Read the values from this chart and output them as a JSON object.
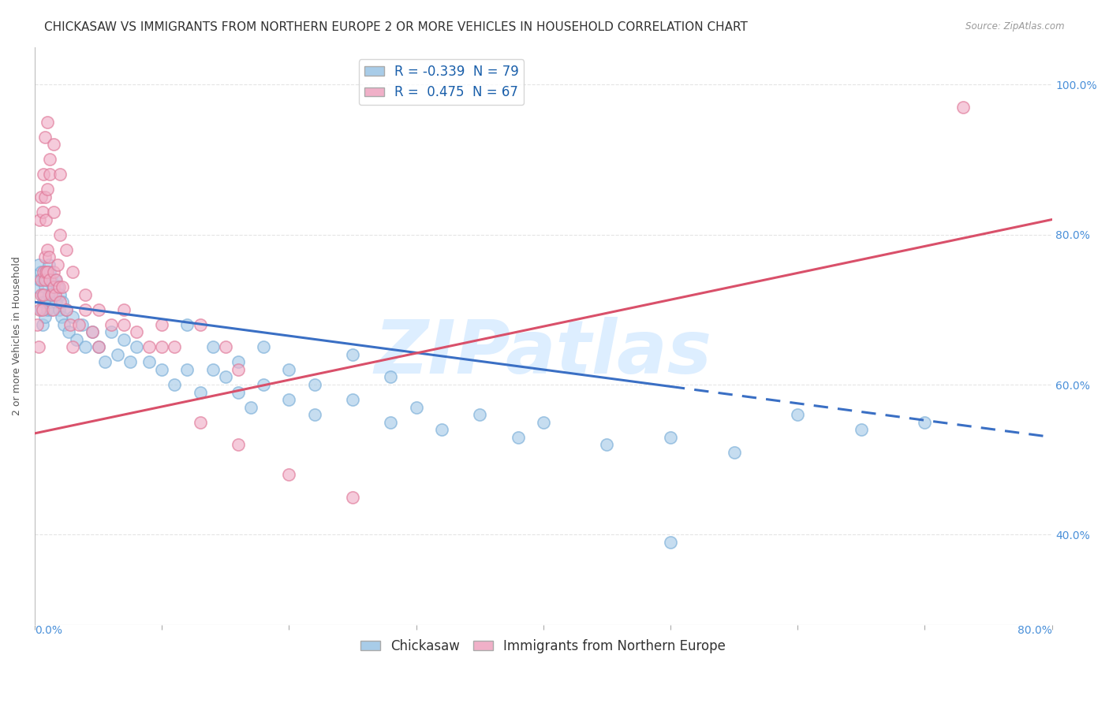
{
  "title": "CHICKASAW VS IMMIGRANTS FROM NORTHERN EUROPE 2 OR MORE VEHICLES IN HOUSEHOLD CORRELATION CHART",
  "source": "Source: ZipAtlas.com",
  "ylabel": "2 or more Vehicles in Household",
  "ylabel_right_ticks": [
    "100.0%",
    "80.0%",
    "60.0%",
    "40.0%"
  ],
  "ylabel_right_vals": [
    1.0,
    0.8,
    0.6,
    0.4
  ],
  "legend_row1": "R = -0.339  N = 79",
  "legend_row2": "R =  0.475  N = 67",
  "legend_color1": "#a8cce8",
  "legend_color2": "#f0b0c8",
  "chickasaw_color": "#a8cce8",
  "chickasaw_edge": "#7aaed8",
  "ne_color": "#f0b0c8",
  "ne_edge": "#e07898",
  "chickasaw_x": [
    0.002,
    0.003,
    0.004,
    0.005,
    0.005,
    0.006,
    0.006,
    0.007,
    0.007,
    0.008,
    0.008,
    0.009,
    0.009,
    0.01,
    0.01,
    0.011,
    0.011,
    0.012,
    0.012,
    0.013,
    0.013,
    0.014,
    0.015,
    0.016,
    0.017,
    0.018,
    0.019,
    0.02,
    0.021,
    0.022,
    0.023,
    0.025,
    0.027,
    0.03,
    0.033,
    0.037,
    0.04,
    0.045,
    0.05,
    0.055,
    0.06,
    0.065,
    0.07,
    0.075,
    0.08,
    0.09,
    0.1,
    0.11,
    0.12,
    0.13,
    0.14,
    0.15,
    0.16,
    0.17,
    0.18,
    0.2,
    0.22,
    0.25,
    0.28,
    0.3,
    0.32,
    0.35,
    0.38,
    0.4,
    0.45,
    0.5,
    0.55,
    0.6,
    0.65,
    0.7,
    0.12,
    0.14,
    0.16,
    0.18,
    0.2,
    0.22,
    0.25,
    0.28,
    0.5
  ],
  "chickasaw_y": [
    0.73,
    0.76,
    0.74,
    0.7,
    0.75,
    0.72,
    0.68,
    0.74,
    0.71,
    0.73,
    0.69,
    0.75,
    0.71,
    0.74,
    0.7,
    0.76,
    0.72,
    0.75,
    0.71,
    0.74,
    0.7,
    0.73,
    0.72,
    0.74,
    0.71,
    0.73,
    0.7,
    0.72,
    0.69,
    0.71,
    0.68,
    0.7,
    0.67,
    0.69,
    0.66,
    0.68,
    0.65,
    0.67,
    0.65,
    0.63,
    0.67,
    0.64,
    0.66,
    0.63,
    0.65,
    0.63,
    0.62,
    0.6,
    0.62,
    0.59,
    0.62,
    0.61,
    0.59,
    0.57,
    0.6,
    0.58,
    0.56,
    0.58,
    0.55,
    0.57,
    0.54,
    0.56,
    0.53,
    0.55,
    0.52,
    0.53,
    0.51,
    0.56,
    0.54,
    0.55,
    0.68,
    0.65,
    0.63,
    0.65,
    0.62,
    0.6,
    0.64,
    0.61,
    0.39
  ],
  "ne_x": [
    0.002,
    0.003,
    0.004,
    0.005,
    0.005,
    0.006,
    0.007,
    0.007,
    0.008,
    0.008,
    0.009,
    0.01,
    0.01,
    0.011,
    0.012,
    0.013,
    0.014,
    0.015,
    0.015,
    0.016,
    0.017,
    0.018,
    0.019,
    0.02,
    0.022,
    0.025,
    0.028,
    0.03,
    0.035,
    0.04,
    0.045,
    0.05,
    0.06,
    0.07,
    0.08,
    0.09,
    0.1,
    0.11,
    0.13,
    0.15,
    0.004,
    0.005,
    0.006,
    0.007,
    0.008,
    0.009,
    0.01,
    0.012,
    0.015,
    0.02,
    0.025,
    0.03,
    0.04,
    0.05,
    0.07,
    0.1,
    0.13,
    0.16,
    0.2,
    0.25,
    0.008,
    0.01,
    0.012,
    0.015,
    0.02,
    0.16,
    0.73
  ],
  "ne_y": [
    0.68,
    0.65,
    0.7,
    0.72,
    0.74,
    0.7,
    0.75,
    0.72,
    0.74,
    0.77,
    0.75,
    0.78,
    0.75,
    0.77,
    0.74,
    0.72,
    0.7,
    0.73,
    0.75,
    0.72,
    0.74,
    0.76,
    0.73,
    0.71,
    0.73,
    0.7,
    0.68,
    0.65,
    0.68,
    0.7,
    0.67,
    0.65,
    0.68,
    0.7,
    0.67,
    0.65,
    0.68,
    0.65,
    0.68,
    0.65,
    0.82,
    0.85,
    0.83,
    0.88,
    0.85,
    0.82,
    0.86,
    0.88,
    0.83,
    0.8,
    0.78,
    0.75,
    0.72,
    0.7,
    0.68,
    0.65,
    0.55,
    0.52,
    0.48,
    0.45,
    0.93,
    0.95,
    0.9,
    0.92,
    0.88,
    0.62,
    0.97
  ],
  "blue_trend_x": [
    0.0,
    0.8
  ],
  "blue_trend_y": [
    0.71,
    0.53
  ],
  "pink_trend_x": [
    0.0,
    0.8
  ],
  "pink_trend_y": [
    0.535,
    0.82
  ],
  "trend_solid_end": 0.5,
  "blue_color": "#3a6fc4",
  "pink_color": "#d9506a",
  "watermark": "ZIPatlas",
  "watermark_color": "#ddeeff",
  "background_color": "#ffffff",
  "xlim": [
    0.0,
    0.8
  ],
  "ylim": [
    0.28,
    1.05
  ],
  "grid_color": "#e5e5e5",
  "title_fontsize": 11,
  "axis_label_fontsize": 9,
  "tick_fontsize": 10,
  "legend_fontsize": 12
}
